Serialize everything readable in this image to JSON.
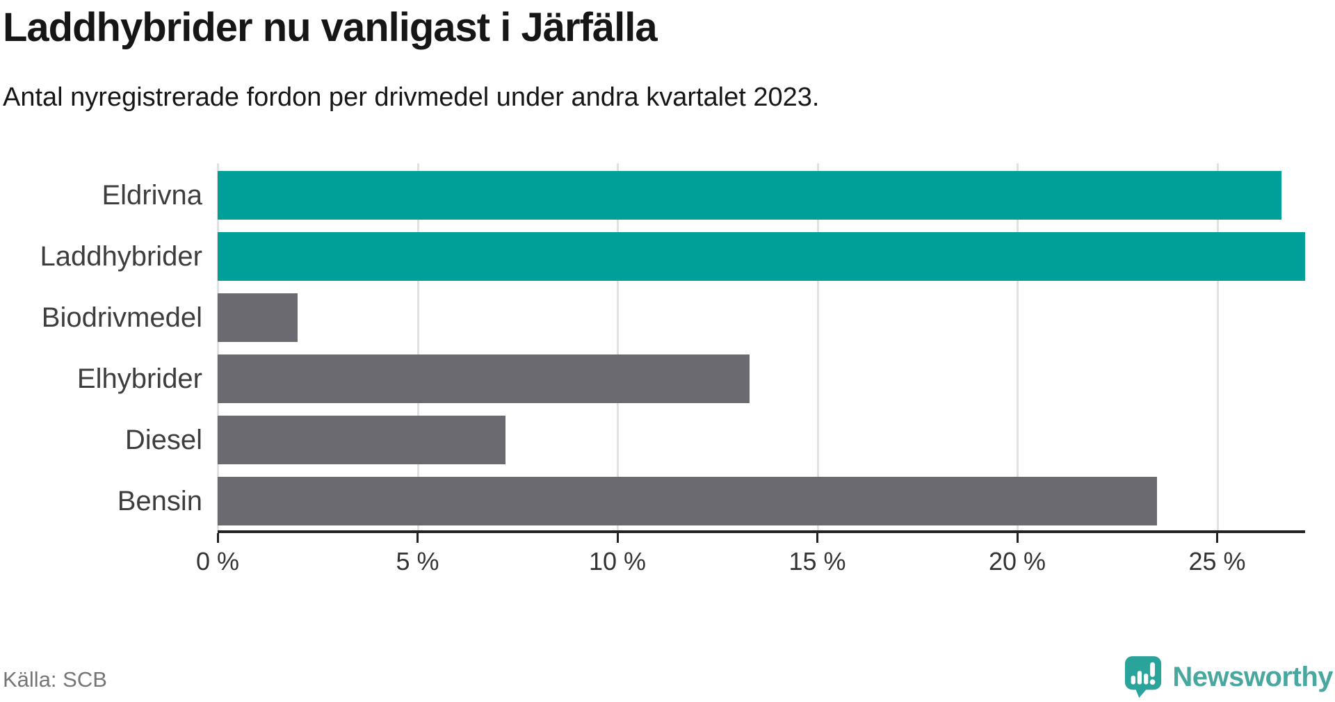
{
  "header": {
    "title": "Laddhybrider nu vanligast i Järfälla",
    "subtitle": "Antal nyregistrerade fordon per drivmedel under andra kvartalet 2023."
  },
  "chart_data": {
    "type": "bar",
    "orientation": "horizontal",
    "title": "Laddhybrider nu vanligast i Järfälla",
    "subtitle": "Antal nyregistrerade fordon per drivmedel under andra kvartalet 2023.",
    "xlabel": "",
    "ylabel": "",
    "unit": "%",
    "categories": [
      "Eldrivna",
      "Laddhybrider",
      "Biodrivmedel",
      "Elhybrider",
      "Diesel",
      "Bensin"
    ],
    "values": [
      26.6,
      27.2,
      2.0,
      13.3,
      7.2,
      23.5
    ],
    "bar_colors": [
      "#00a099",
      "#00a099",
      "#6a6a70",
      "#6a6a70",
      "#6a6a70",
      "#6a6a70"
    ],
    "xlim": [
      0,
      27.2
    ],
    "x_ticks": [
      {
        "value": 0,
        "label": "0 %"
      },
      {
        "value": 5,
        "label": "5 %"
      },
      {
        "value": 10,
        "label": "10 %"
      },
      {
        "value": 15,
        "label": "15 %"
      },
      {
        "value": 20,
        "label": "20 %"
      },
      {
        "value": 25,
        "label": "25 %"
      }
    ],
    "grid": "vertical",
    "legend": "none",
    "note": "Laddhybrider bar is clipped at the right edge of the plot area"
  },
  "colors": {
    "accent_teal": "#00a099",
    "neutral_gray": "#6a6a70",
    "gridline": "#e1e1e1",
    "axis": "#222222",
    "text_dark": "#161616",
    "text_label": "#3d3d3d",
    "text_muted": "#757575",
    "logo_teal": "#2aa49a",
    "logo_text_teal": "#4aa7a0"
  },
  "footer": {
    "source": "Källa: SCB",
    "logo_text": "Newsworthy"
  }
}
